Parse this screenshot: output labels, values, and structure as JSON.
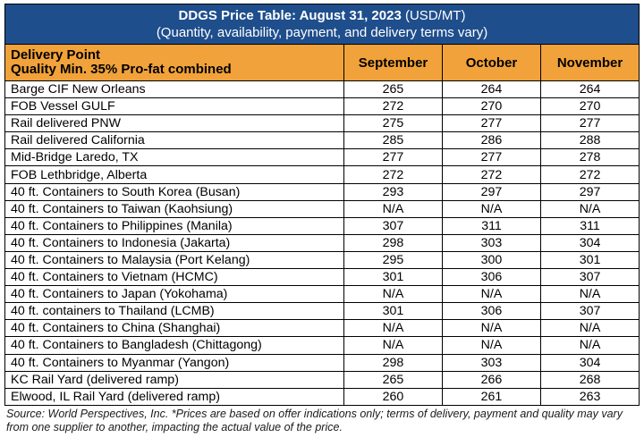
{
  "title": {
    "bold": "DDGS Price Table: August 31, 2023",
    "unit": "(USD/MT)",
    "subtitle": "(Quantity, availability, payment, and delivery terms vary)"
  },
  "header": {
    "delivery_point": "Delivery Point",
    "quality": "Quality Min. 35% Pro-fat combined",
    "months": [
      "September",
      "October",
      "November"
    ]
  },
  "rows": [
    {
      "name": "Barge CIF New Orleans",
      "sep": "265",
      "oct": "264",
      "nov": "264"
    },
    {
      "name": "FOB Vessel GULF",
      "sep": "272",
      "oct": "270",
      "nov": "270"
    },
    {
      "name": "Rail delivered PNW",
      "sep": "275",
      "oct": "277",
      "nov": "277"
    },
    {
      "name": "Rail delivered California",
      "sep": "285",
      "oct": "286",
      "nov": "288"
    },
    {
      "name": "Mid-Bridge Laredo, TX",
      "sep": "277",
      "oct": "277",
      "nov": "278"
    },
    {
      "name": "FOB Lethbridge, Alberta",
      "sep": "272",
      "oct": "272",
      "nov": "272"
    },
    {
      "name": "40 ft. Containers to South Korea (Busan)",
      "sep": "293",
      "oct": "297",
      "nov": "297"
    },
    {
      "name": "40 ft. Containers to Taiwan (Kaohsiung)",
      "sep": "N/A",
      "oct": "N/A",
      "nov": "N/A"
    },
    {
      "name": "40 ft. Containers to Philippines (Manila)",
      "sep": "307",
      "oct": "311",
      "nov": "311"
    },
    {
      "name": "40 ft. Containers to Indonesia (Jakarta)",
      "sep": "298",
      "oct": "303",
      "nov": "304"
    },
    {
      "name": "40 ft. Containers to Malaysia (Port Kelang)",
      "sep": "295",
      "oct": "300",
      "nov": "301"
    },
    {
      "name": "40 ft. Containers to Vietnam (HCMC)",
      "sep": "301",
      "oct": "306",
      "nov": "307"
    },
    {
      "name": "40 ft. Containers to Japan (Yokohama)",
      "sep": "N/A",
      "oct": "N/A",
      "nov": "N/A"
    },
    {
      "name": "40 ft. containers to Thailand (LCMB)",
      "sep": "301",
      "oct": "306",
      "nov": "307"
    },
    {
      "name": "40 ft. Containers to China (Shanghai)",
      "sep": "N/A",
      "oct": "N/A",
      "nov": "N/A"
    },
    {
      "name": "40 ft. Containers to Bangladesh (Chittagong)",
      "sep": "N/A",
      "oct": "N/A",
      "nov": "N/A"
    },
    {
      "name": "40 ft. Containers to Myanmar (Yangon)",
      "sep": "298",
      "oct": "303",
      "nov": "304"
    },
    {
      "name": "KC Rail Yard (delivered ramp)",
      "sep": "265",
      "oct": "266",
      "nov": "268"
    },
    {
      "name": "Elwood, IL Rail Yard (delivered ramp)",
      "sep": "260",
      "oct": "261",
      "nov": "263"
    }
  ],
  "source": "Source: World Perspectives, Inc. *Prices are based on offer indications only; terms of delivery, payment and quality may vary from one supplier to another, impacting the actual value of the price.",
  "colors": {
    "title_bg": "#1f4e8c",
    "header_bg": "#f1a23a"
  }
}
